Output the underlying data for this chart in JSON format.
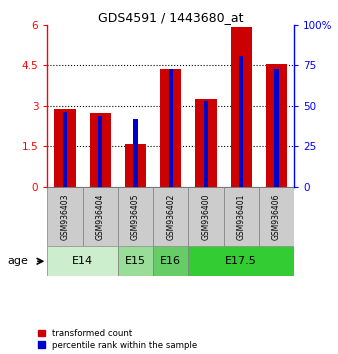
{
  "title": "GDS4591 / 1443680_at",
  "samples": [
    "GSM936403",
    "GSM936404",
    "GSM936405",
    "GSM936402",
    "GSM936400",
    "GSM936401",
    "GSM936406"
  ],
  "transformed_count": [
    2.9,
    2.75,
    1.6,
    4.35,
    3.25,
    5.9,
    4.55
  ],
  "percentile_rank_pct": [
    46.5,
    43.5,
    42.0,
    73.0,
    53.0,
    80.5,
    73.0
  ],
  "age_groups": [
    {
      "label": "E14",
      "start": 0,
      "end": 2
    },
    {
      "label": "E15",
      "start": 2,
      "end": 3
    },
    {
      "label": "E16",
      "start": 3,
      "end": 4
    },
    {
      "label": "E17.5",
      "start": 4,
      "end": 7
    }
  ],
  "age_group_colors": [
    "#cceecc",
    "#99dd99",
    "#66cc66",
    "#33cc33"
  ],
  "left_ylim": [
    0,
    6
  ],
  "left_yticks": [
    0,
    1.5,
    3,
    4.5,
    6
  ],
  "left_yticklabels": [
    "0",
    "1.5",
    "3",
    "4.5",
    "6"
  ],
  "right_ylim": [
    0,
    100
  ],
  "right_yticks": [
    0,
    25,
    50,
    75,
    100
  ],
  "right_yticklabels": [
    "0",
    "25",
    "50",
    "75",
    "100%"
  ],
  "bar_color_red": "#cc0000",
  "bar_color_blue": "#0000cc",
  "bar_width": 0.6,
  "blue_bar_width": 0.12,
  "bg_color": "#ffffff",
  "sample_bg": "#cccccc",
  "age_label": "age"
}
